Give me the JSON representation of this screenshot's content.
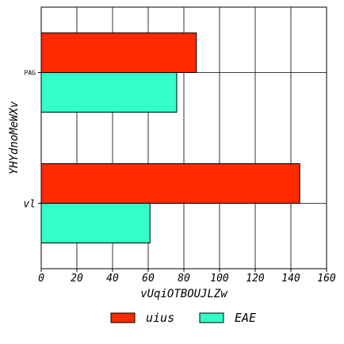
{
  "chart_data": {
    "type": "bar",
    "orientation": "horizontal",
    "categories": [
      "vl",
      "PAG"
    ],
    "series": [
      {
        "name": "uius",
        "color": "#ff2a00",
        "values": [
          145,
          87
        ]
      },
      {
        "name": "EAE",
        "color": "#33ffc8",
        "values": [
          61,
          76
        ]
      }
    ],
    "xlabel": "vUqiOTBOUJLZw",
    "ylabel": "YHYdnoMeWXv",
    "xlim": [
      0,
      160
    ],
    "xticks": [
      "0",
      "20",
      "40",
      "60",
      "80",
      "100",
      "120",
      "140",
      "160"
    ],
    "grid": true,
    "legend_position": "bottom-center"
  }
}
